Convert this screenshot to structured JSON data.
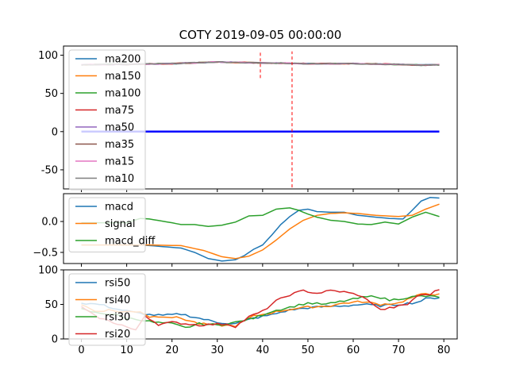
{
  "chart_data": {
    "title": "COTY 2019-09-05 00:00:00",
    "x_ticks": [
      0,
      10,
      20,
      30,
      40,
      50,
      60,
      70,
      80
    ],
    "panels": [
      {
        "type": "line",
        "name": "price-ma",
        "xlim": [
          -3.95,
          82.95
        ],
        "ylim": [
          -75,
          112
        ],
        "y_ticks": [
          -50,
          0,
          50,
          100
        ],
        "legend": "top-left",
        "series": [
          {
            "name": "ma200",
            "color": "#1f77b4"
          },
          {
            "name": "ma150",
            "color": "#ff7f0e"
          },
          {
            "name": "ma100",
            "color": "#2ca02c"
          },
          {
            "name": "ma75",
            "color": "#d62728"
          },
          {
            "name": "ma50",
            "color": "#9467bd"
          },
          {
            "name": "ma35",
            "color": "#8c564b"
          },
          {
            "name": "ma15",
            "color": "#e377c2"
          },
          {
            "name": "ma10",
            "color": "#7f7f7f"
          }
        ],
        "ma_keypoints": [
          [
            0,
            87.5
          ],
          [
            5,
            88
          ],
          [
            10,
            88
          ],
          [
            15,
            88.5
          ],
          [
            20,
            89
          ],
          [
            25,
            90
          ],
          [
            30,
            91
          ],
          [
            35,
            90.5
          ],
          [
            40,
            90
          ],
          [
            45,
            89.5
          ],
          [
            50,
            89
          ],
          [
            55,
            89
          ],
          [
            60,
            89
          ],
          [
            65,
            88.5
          ],
          [
            70,
            88
          ],
          [
            75,
            87
          ],
          [
            79,
            87.5
          ]
        ],
        "zero_line": {
          "x": [
            0,
            79
          ],
          "y": 0,
          "color": "#0000ff"
        },
        "vlines": [
          {
            "x": 39.5,
            "ymin": 70,
            "ymax": 105,
            "color": "#ff0000"
          },
          {
            "x": 46.5,
            "ymin": -73,
            "ymax": 105,
            "color": "#ff0000"
          }
        ]
      },
      {
        "type": "line",
        "name": "macd",
        "xlim": [
          -3.95,
          82.95
        ],
        "ylim": [
          -0.68,
          0.45
        ],
        "y_ticks": [
          -0.5,
          0.0
        ],
        "y_tick_labels": [
          "−0.5",
          "0.0"
        ],
        "legend": "top-left",
        "series": [
          {
            "name": "macd",
            "color": "#1f77b4",
            "points": [
              [
                0,
                -0.38
              ],
              [
                10,
                -0.38
              ],
              [
                13,
                -0.38
              ],
              [
                17,
                -0.4
              ],
              [
                22,
                -0.43
              ],
              [
                25,
                -0.5
              ],
              [
                28,
                -0.6
              ],
              [
                31,
                -0.64
              ],
              [
                34,
                -0.62
              ],
              [
                36,
                -0.55
              ],
              [
                38,
                -0.45
              ],
              [
                40,
                -0.38
              ],
              [
                42,
                -0.22
              ],
              [
                44,
                -0.05
              ],
              [
                46,
                0.08
              ],
              [
                48,
                0.18
              ],
              [
                50,
                0.2
              ],
              [
                52,
                0.16
              ],
              [
                55,
                0.15
              ],
              [
                58,
                0.15
              ],
              [
                61,
                0.1
              ],
              [
                65,
                0.07
              ],
              [
                68,
                0.05
              ],
              [
                71,
                0.04
              ],
              [
                73,
                0.18
              ],
              [
                75,
                0.33
              ],
              [
                77,
                0.39
              ],
              [
                79,
                0.38
              ]
            ]
          },
          {
            "name": "signal",
            "color": "#ff7f0e",
            "points": [
              [
                0,
                -0.38
              ],
              [
                10,
                -0.38
              ],
              [
                15,
                -0.38
              ],
              [
                22,
                -0.39
              ],
              [
                27,
                -0.47
              ],
              [
                31,
                -0.57
              ],
              [
                34,
                -0.6
              ],
              [
                37,
                -0.56
              ],
              [
                40,
                -0.46
              ],
              [
                43,
                -0.3
              ],
              [
                46,
                -0.12
              ],
              [
                49,
                0.02
              ],
              [
                52,
                0.1
              ],
              [
                55,
                0.13
              ],
              [
                58,
                0.14
              ],
              [
                61,
                0.13
              ],
              [
                65,
                0.1
              ],
              [
                70,
                0.08
              ],
              [
                73,
                0.1
              ],
              [
                76,
                0.2
              ],
              [
                79,
                0.28
              ]
            ]
          },
          {
            "name": "macd_diff",
            "color": "#2ca02c",
            "points": [
              [
                0,
                -0.02
              ],
              [
                10,
                -0.02
              ],
              [
                13,
                0.05
              ],
              [
                15,
                0.04
              ],
              [
                20,
                -0.02
              ],
              [
                22,
                -0.05
              ],
              [
                25,
                -0.05
              ],
              [
                28,
                -0.08
              ],
              [
                31,
                -0.06
              ],
              [
                34,
                -0.01
              ],
              [
                37,
                0.09
              ],
              [
                40,
                0.1
              ],
              [
                43,
                0.2
              ],
              [
                46,
                0.22
              ],
              [
                48,
                0.18
              ],
              [
                50,
                0.12
              ],
              [
                52,
                0.07
              ],
              [
                55,
                0.02
              ],
              [
                58,
                0.0
              ],
              [
                61,
                -0.04
              ],
              [
                64,
                -0.05
              ],
              [
                67,
                -0.01
              ],
              [
                70,
                -0.04
              ],
              [
                73,
                0.07
              ],
              [
                76,
                0.15
              ],
              [
                79,
                0.08
              ]
            ]
          }
        ]
      },
      {
        "type": "line",
        "name": "rsi",
        "xlim": [
          -3.95,
          82.95
        ],
        "ylim": [
          0,
          100
        ],
        "y_ticks": [
          0,
          50,
          100
        ],
        "legend": "top-left",
        "series": [
          {
            "name": "rsi50",
            "color": "#1f77b4",
            "points": [
              [
                0,
                52
              ],
              [
                4,
                50
              ],
              [
                8,
                43
              ],
              [
                12,
                38
              ],
              [
                15,
                35
              ],
              [
                18,
                34
              ],
              [
                22,
                36
              ],
              [
                26,
                30
              ],
              [
                30,
                24
              ],
              [
                34,
                22
              ],
              [
                38,
                30
              ],
              [
                42,
                35
              ],
              [
                46,
                42
              ],
              [
                50,
                45
              ],
              [
                54,
                47
              ],
              [
                58,
                48
              ],
              [
                62,
                50
              ],
              [
                66,
                48
              ],
              [
                70,
                50
              ],
              [
                74,
                53
              ],
              [
                76,
                58
              ],
              [
                79,
                60
              ]
            ]
          },
          {
            "name": "rsi40",
            "color": "#ff7f0e",
            "points": [
              [
                0,
                50
              ],
              [
                3,
                40
              ],
              [
                6,
                42
              ],
              [
                9,
                39
              ],
              [
                13,
                40
              ],
              [
                15,
                32
              ],
              [
                18,
                33
              ],
              [
                22,
                30
              ],
              [
                26,
                22
              ],
              [
                30,
                20
              ],
              [
                34,
                19
              ],
              [
                38,
                33
              ],
              [
                42,
                38
              ],
              [
                46,
                43
              ],
              [
                50,
                46
              ],
              [
                55,
                48
              ],
              [
                58,
                52
              ],
              [
                62,
                54
              ],
              [
                66,
                50
              ],
              [
                70,
                52
              ],
              [
                73,
                60
              ],
              [
                76,
                66
              ],
              [
                79,
                64
              ]
            ]
          },
          {
            "name": "rsi30",
            "color": "#2ca02c",
            "points": [
              [
                0,
                43
              ],
              [
                3,
                38
              ],
              [
                7,
                36
              ],
              [
                10,
                30
              ],
              [
                13,
                28
              ],
              [
                16,
                24
              ],
              [
                20,
                22
              ],
              [
                23,
                16
              ],
              [
                26,
                22
              ],
              [
                30,
                20
              ],
              [
                34,
                24
              ],
              [
                38,
                30
              ],
              [
                42,
                40
              ],
              [
                46,
                46
              ],
              [
                50,
                52
              ],
              [
                54,
                50
              ],
              [
                58,
                55
              ],
              [
                62,
                60
              ],
              [
                65,
                62
              ],
              [
                68,
                56
              ],
              [
                72,
                60
              ],
              [
                75,
                62
              ],
              [
                79,
                61
              ]
            ]
          },
          {
            "name": "rsi20",
            "color": "#d62728",
            "points": [
              [
                0,
                46
              ],
              [
                3,
                33
              ],
              [
                6,
                26
              ],
              [
                9,
                20
              ],
              [
                12,
                12
              ],
              [
                14,
                34
              ],
              [
                17,
                21
              ],
              [
                20,
                24
              ],
              [
                23,
                22
              ],
              [
                26,
                20
              ],
              [
                29,
                21
              ],
              [
                32,
                22
              ],
              [
                34,
                18
              ],
              [
                37,
                32
              ],
              [
                40,
                40
              ],
              [
                43,
                55
              ],
              [
                46,
                64
              ],
              [
                49,
                70
              ],
              [
                52,
                66
              ],
              [
                55,
                70
              ],
              [
                58,
                68
              ],
              [
                61,
                64
              ],
              [
                64,
                53
              ],
              [
                66,
                42
              ],
              [
                69,
                46
              ],
              [
                72,
                50
              ],
              [
                74,
                62
              ],
              [
                77,
                65
              ],
              [
                79,
                72
              ]
            ]
          }
        ]
      }
    ]
  }
}
